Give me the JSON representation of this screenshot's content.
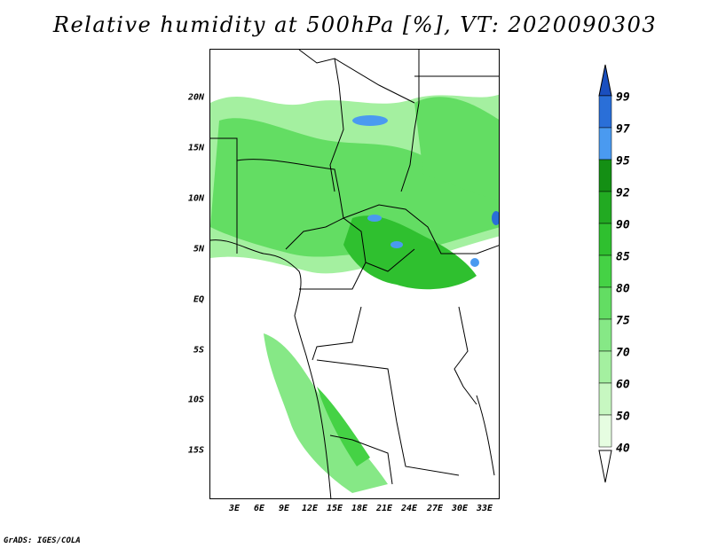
{
  "title": "Relative humidity at 500hPa [%], VT: 2020090303",
  "credit": "GrADS: IGES/COLA",
  "map": {
    "lat_labels": [
      "20N",
      "15N",
      "10N",
      "5N",
      "EQ",
      "5S",
      "10S",
      "15S"
    ],
    "lon_labels": [
      "3E",
      "6E",
      "9E",
      "12E",
      "15E",
      "18E",
      "21E",
      "24E",
      "27E",
      "30E",
      "33E"
    ]
  },
  "colorbar": {
    "levels": [
      "40",
      "50",
      "60",
      "70",
      "75",
      "80",
      "85",
      "90",
      "92",
      "95",
      "97",
      "99"
    ],
    "colors": [
      "#ffffff",
      "#e6fde1",
      "#c7f7c1",
      "#a4f0a0",
      "#86e886",
      "#63dd63",
      "#45d245",
      "#2fc02f",
      "#22aa22",
      "#148f14",
      "#4a9af0",
      "#2a6fd8",
      "#1a4fbf"
    ]
  }
}
